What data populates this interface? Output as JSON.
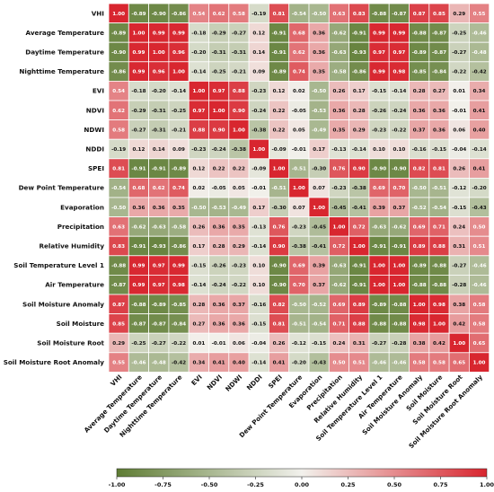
{
  "chart_data": {
    "type": "heatmap",
    "labels": [
      "VHI",
      "Average Temperature",
      "Daytime Temperature",
      "Nighttime Temperature",
      "EVI",
      "NDVI",
      "NDWI",
      "NDDI",
      "SPEI",
      "Dew Point Temperature",
      "Evaporation",
      "Precipitation",
      "Relative Humidity",
      "Soil Temperature Level 1",
      "Air Temperature",
      "Soil Moisture Anomaly",
      "Soil Moisture",
      "Soil Moisture Root",
      "Soil Moisture Root Anomaly"
    ],
    "values": [
      [
        1.0,
        -0.89,
        -0.9,
        -0.86,
        0.54,
        0.62,
        0.58,
        -0.19,
        0.81,
        -0.54,
        -0.5,
        0.63,
        0.83,
        -0.88,
        -0.87,
        0.87,
        0.85,
        0.29,
        0.55
      ],
      [
        -0.89,
        1.0,
        0.99,
        0.99,
        -0.18,
        -0.29,
        -0.27,
        0.12,
        -0.91,
        0.68,
        0.36,
        -0.62,
        -0.91,
        0.99,
        0.99,
        -0.88,
        -0.87,
        -0.25,
        -0.46
      ],
      [
        -0.9,
        0.99,
        1.0,
        0.96,
        -0.2,
        -0.31,
        -0.31,
        0.14,
        -0.91,
        0.62,
        0.36,
        -0.63,
        -0.93,
        0.97,
        0.97,
        -0.89,
        -0.87,
        -0.27,
        -0.48
      ],
      [
        -0.86,
        0.99,
        0.96,
        1.0,
        -0.14,
        -0.25,
        -0.21,
        0.09,
        -0.89,
        0.74,
        0.35,
        -0.58,
        -0.86,
        0.99,
        0.98,
        -0.85,
        -0.84,
        -0.22,
        -0.42
      ],
      [
        0.54,
        -0.18,
        -0.2,
        -0.14,
        1.0,
        0.97,
        0.88,
        -0.23,
        0.12,
        0.02,
        -0.5,
        0.26,
        0.17,
        -0.15,
        -0.14,
        0.28,
        0.27,
        0.01,
        0.34
      ],
      [
        0.62,
        -0.29,
        -0.31,
        -0.25,
        0.97,
        1.0,
        0.9,
        -0.24,
        0.22,
        -0.05,
        -0.53,
        0.36,
        0.28,
        -0.26,
        -0.24,
        0.36,
        0.36,
        -0.01,
        0.41
      ],
      [
        0.58,
        -0.27,
        -0.31,
        -0.21,
        0.88,
        0.9,
        1.0,
        -0.38,
        0.22,
        0.05,
        -0.49,
        0.35,
        0.29,
        -0.23,
        -0.22,
        0.37,
        0.36,
        0.06,
        0.4
      ],
      [
        -0.19,
        0.12,
        0.14,
        0.09,
        -0.23,
        -0.24,
        -0.38,
        1.0,
        -0.09,
        -0.01,
        0.17,
        -0.13,
        -0.14,
        0.1,
        0.1,
        -0.16,
        -0.15,
        -0.04,
        -0.14
      ],
      [
        0.81,
        -0.91,
        -0.91,
        -0.89,
        0.12,
        0.22,
        0.22,
        -0.09,
        1.0,
        -0.51,
        -0.3,
        0.76,
        0.9,
        -0.9,
        -0.9,
        0.82,
        0.81,
        0.26,
        0.41
      ],
      [
        -0.54,
        0.68,
        0.62,
        0.74,
        0.02,
        -0.05,
        0.05,
        -0.01,
        -0.51,
        1.0,
        0.07,
        -0.23,
        -0.38,
        0.69,
        0.7,
        -0.5,
        -0.51,
        -0.12,
        -0.2
      ],
      [
        -0.5,
        0.36,
        0.36,
        0.35,
        -0.5,
        -0.53,
        -0.49,
        0.17,
        -0.3,
        0.07,
        1.0,
        -0.45,
        -0.41,
        0.39,
        0.37,
        -0.52,
        -0.54,
        -0.15,
        -0.43
      ],
      [
        0.63,
        -0.62,
        -0.63,
        -0.58,
        0.26,
        0.36,
        0.35,
        -0.13,
        0.76,
        -0.23,
        -0.45,
        1.0,
        0.72,
        -0.63,
        -0.62,
        0.69,
        0.71,
        0.24,
        0.5
      ],
      [
        0.83,
        -0.91,
        -0.93,
        -0.86,
        0.17,
        0.28,
        0.29,
        -0.14,
        0.9,
        -0.38,
        -0.41,
        0.72,
        1.0,
        -0.91,
        -0.91,
        0.89,
        0.88,
        0.31,
        0.51
      ],
      [
        -0.88,
        0.99,
        0.97,
        0.99,
        -0.15,
        -0.26,
        -0.23,
        0.1,
        -0.9,
        0.69,
        0.39,
        -0.63,
        -0.91,
        1.0,
        1.0,
        -0.89,
        -0.88,
        -0.27,
        -0.46
      ],
      [
        -0.87,
        0.99,
        0.97,
        0.98,
        -0.14,
        -0.24,
        -0.22,
        0.1,
        -0.9,
        0.7,
        0.37,
        -0.62,
        -0.91,
        1.0,
        1.0,
        -0.88,
        -0.88,
        -0.28,
        -0.46
      ],
      [
        0.87,
        -0.88,
        -0.89,
        -0.85,
        0.28,
        0.36,
        0.37,
        -0.16,
        0.82,
        -0.5,
        -0.52,
        0.69,
        0.89,
        -0.89,
        -0.88,
        1.0,
        0.98,
        0.38,
        0.58
      ],
      [
        0.85,
        -0.87,
        -0.87,
        -0.84,
        0.27,
        0.36,
        0.36,
        -0.15,
        0.81,
        -0.51,
        -0.54,
        0.71,
        0.88,
        -0.88,
        -0.88,
        0.98,
        1.0,
        0.42,
        0.58
      ],
      [
        0.29,
        -0.25,
        -0.27,
        -0.22,
        0.01,
        -0.01,
        0.06,
        -0.04,
        0.26,
        -0.12,
        -0.15,
        0.24,
        0.31,
        -0.27,
        -0.28,
        0.38,
        0.42,
        1.0,
        0.65
      ],
      [
        0.55,
        -0.46,
        -0.48,
        -0.42,
        0.34,
        0.41,
        0.4,
        -0.14,
        0.41,
        -0.2,
        -0.43,
        0.5,
        0.51,
        -0.46,
        -0.46,
        0.58,
        0.58,
        0.65,
        1.0
      ]
    ],
    "colorbar": {
      "min": -1.0,
      "max": 1.0,
      "ticks": [
        "-1.00",
        "-0.75",
        "-0.50",
        "-0.25",
        "0.00",
        "0.25",
        "0.50",
        "0.75",
        "1.00"
      ]
    },
    "colors": {
      "low": "#5e7c33",
      "mid": "#f2f1ec",
      "high": "#d8262f",
      "grid": "#ffffff"
    }
  }
}
